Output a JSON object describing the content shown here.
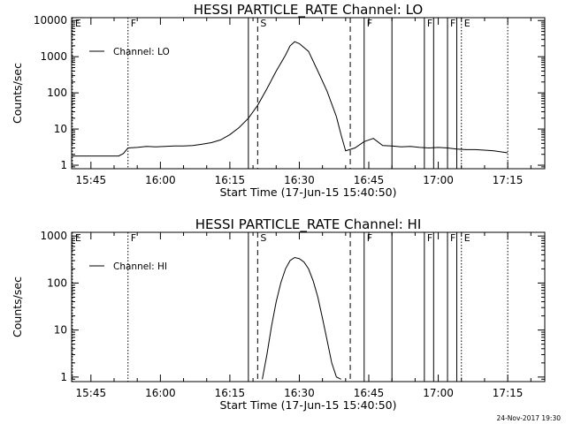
{
  "chart_data": [
    {
      "type": "line",
      "title": "HESSI PARTICLE_RATE Channel: LO",
      "xlabel": "Start Time (17-Jun-15 15:40:50)",
      "ylabel": "Counts/sec",
      "yscale": "log",
      "xlim": [
        "15:40:50",
        "17:23:00"
      ],
      "ylim": [
        0.8,
        12000
      ],
      "x_ticks": [
        "15:45",
        "16:00",
        "16:15",
        "16:30",
        "16:45",
        "17:00",
        "17:15"
      ],
      "y_ticks": [
        {
          "v": 1,
          "label": "1"
        },
        {
          "v": 10,
          "label": "10"
        },
        {
          "v": 100,
          "label": "100"
        },
        {
          "v": 1000,
          "label": "1000"
        },
        {
          "v": 10000,
          "label": "10000"
        }
      ],
      "legend": {
        "position": "top-left"
      },
      "series": [
        {
          "name": "Channel: LO",
          "x": [
            "15:41",
            "15:43",
            "15:45",
            "15:47",
            "15:49",
            "15:51",
            "15:52",
            "15:53",
            "15:55",
            "15:57",
            "15:59",
            "16:01",
            "16:03",
            "16:05",
            "16:07",
            "16:09",
            "16:11",
            "16:13",
            "16:15",
            "16:17",
            "16:19",
            "16:21",
            "16:23",
            "16:25",
            "16:27",
            "16:28",
            "16:29",
            "16:30",
            "16:32",
            "16:34",
            "16:36",
            "16:38",
            "16:39",
            "16:40",
            "16:42",
            "16:44",
            "16:46",
            "16:48",
            "16:50",
            "16:52",
            "16:54",
            "16:56",
            "16:58",
            "17:00",
            "17:02",
            "17:04",
            "17:06",
            "17:08",
            "17:10",
            "17:12",
            "17:14",
            "17:15"
          ],
          "y": [
            1.8,
            1.8,
            1.8,
            1.8,
            1.8,
            1.8,
            2.1,
            3.0,
            3.1,
            3.3,
            3.2,
            3.3,
            3.4,
            3.4,
            3.5,
            3.8,
            4.2,
            5.0,
            7.0,
            11,
            20,
            45,
            130,
            400,
            1100,
            2000,
            2600,
            2300,
            1400,
            400,
            110,
            22,
            7,
            2.5,
            3.0,
            4.5,
            5.5,
            3.5,
            3.4,
            3.2,
            3.3,
            3.1,
            3.0,
            3.1,
            3.0,
            2.8,
            2.7,
            2.7,
            2.6,
            2.5,
            2.3,
            2.2
          ]
        }
      ],
      "flag_lines": [
        {
          "time": "15:41",
          "label": "E",
          "style": "dotted"
        },
        {
          "time": "15:53",
          "label": "F",
          "style": "dotted"
        },
        {
          "time": "16:19",
          "label": "",
          "style": "solid"
        },
        {
          "time": "16:21",
          "label": "S",
          "style": "dashed"
        },
        {
          "time": "16:41",
          "label": "",
          "style": "dashed"
        },
        {
          "time": "16:44",
          "label": "F",
          "style": "solid"
        },
        {
          "time": "16:50",
          "label": "",
          "style": "solid"
        },
        {
          "time": "16:57",
          "label": "F",
          "style": "solid"
        },
        {
          "time": "16:59",
          "label": "",
          "style": "solid"
        },
        {
          "time": "17:02",
          "label": "F",
          "style": "solid"
        },
        {
          "time": "17:04",
          "label": "",
          "style": "solid"
        },
        {
          "time": "17:05",
          "label": "E",
          "style": "dotted"
        },
        {
          "time": "17:15",
          "label": "",
          "style": "dotted"
        }
      ]
    },
    {
      "type": "line",
      "title": "HESSI PARTICLE_RATE Channel: HI",
      "xlabel": "Start Time (17-Jun-15 15:40:50)",
      "ylabel": "Counts/sec",
      "yscale": "log",
      "xlim": [
        "15:40:50",
        "17:23:00"
      ],
      "ylim": [
        0.8,
        1200
      ],
      "x_ticks": [
        "15:45",
        "16:00",
        "16:15",
        "16:30",
        "16:45",
        "17:00",
        "17:15"
      ],
      "y_ticks": [
        {
          "v": 1,
          "label": "1"
        },
        {
          "v": 10,
          "label": "10"
        },
        {
          "v": 100,
          "label": "100"
        },
        {
          "v": 1000,
          "label": "1000"
        }
      ],
      "legend": {
        "position": "top-left"
      },
      "series": [
        {
          "name": "Channel: HI",
          "x": [
            "16:22",
            "16:23",
            "16:24",
            "16:25",
            "16:26",
            "16:27",
            "16:28",
            "16:29",
            "16:30",
            "16:31",
            "16:32",
            "16:33",
            "16:34",
            "16:35",
            "16:36",
            "16:37",
            "16:38",
            "16:39"
          ],
          "y": [
            0.9,
            3,
            12,
            40,
            100,
            200,
            300,
            350,
            330,
            280,
            200,
            110,
            50,
            18,
            6,
            2,
            1.0,
            0.9
          ]
        }
      ],
      "flag_lines": [
        {
          "time": "15:41",
          "label": "E",
          "style": "dotted"
        },
        {
          "time": "15:53",
          "label": "F",
          "style": "dotted"
        },
        {
          "time": "16:19",
          "label": "",
          "style": "solid"
        },
        {
          "time": "16:21",
          "label": "S",
          "style": "dashed"
        },
        {
          "time": "16:41",
          "label": "",
          "style": "dashed"
        },
        {
          "time": "16:44",
          "label": "F",
          "style": "solid"
        },
        {
          "time": "16:50",
          "label": "",
          "style": "solid"
        },
        {
          "time": "16:57",
          "label": "F",
          "style": "solid"
        },
        {
          "time": "16:59",
          "label": "",
          "style": "solid"
        },
        {
          "time": "17:02",
          "label": "F",
          "style": "solid"
        },
        {
          "time": "17:04",
          "label": "",
          "style": "solid"
        },
        {
          "time": "17:05",
          "label": "E",
          "style": "dotted"
        },
        {
          "time": "17:15",
          "label": "",
          "style": "dotted"
        }
      ]
    }
  ],
  "footer": {
    "timestamp": "24-Nov-2017 19:30"
  }
}
